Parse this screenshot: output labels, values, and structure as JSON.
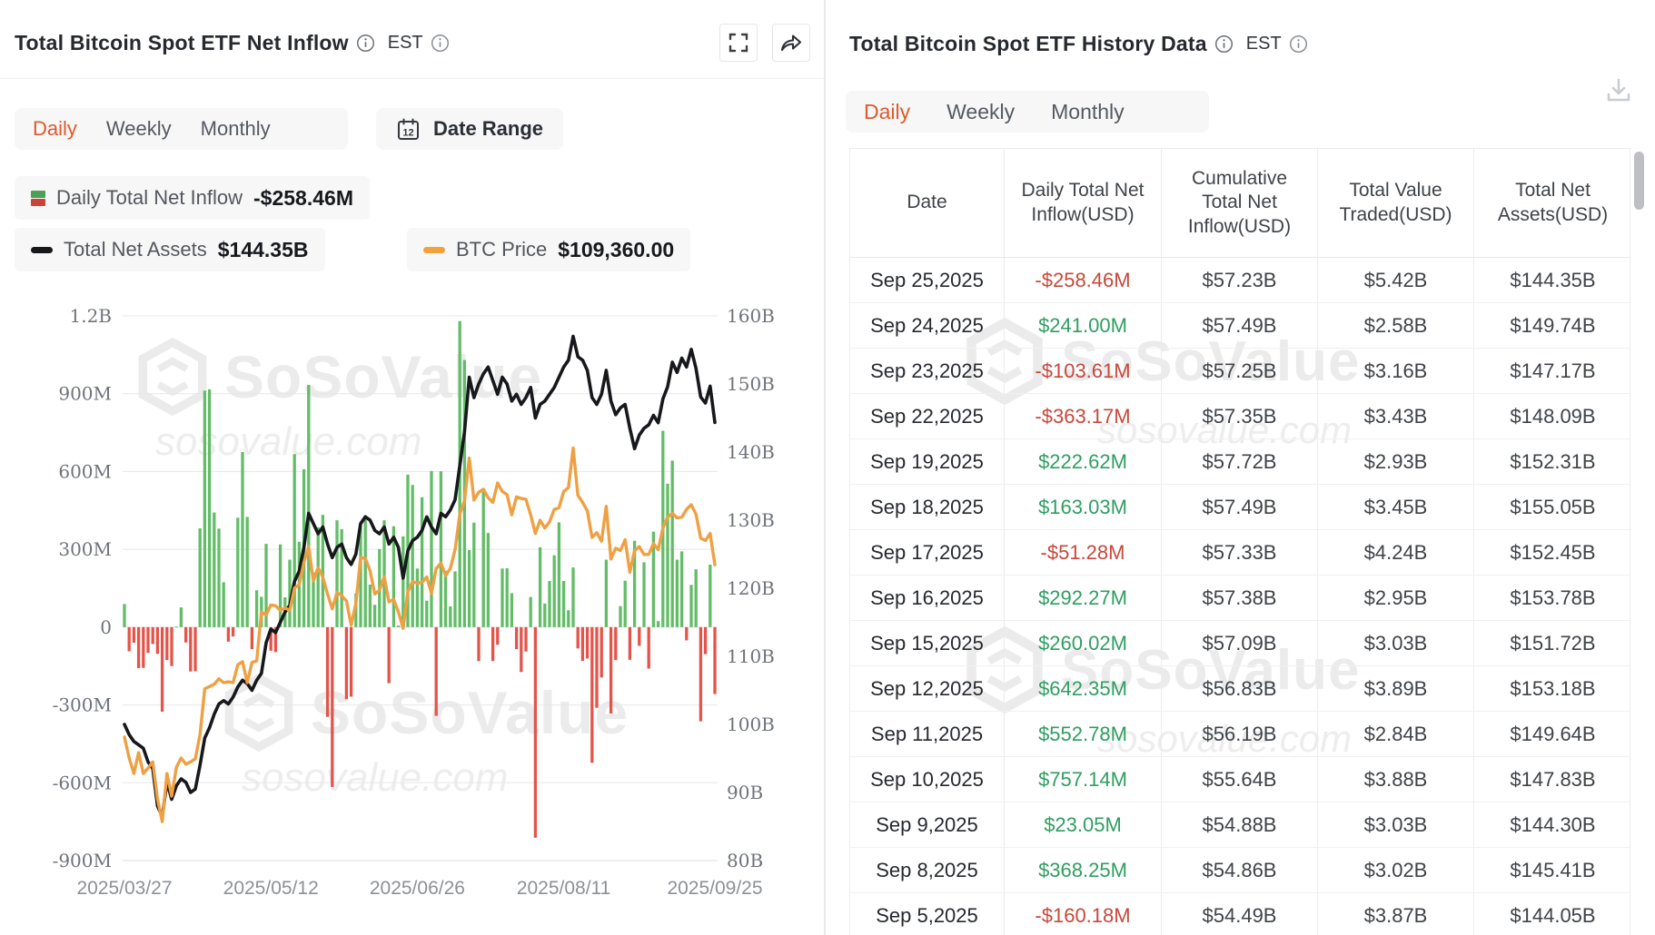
{
  "left_panel": {
    "title": "Total Bitcoin Spot ETF Net Inflow",
    "est_label": "EST",
    "tabs": [
      {
        "label": "Daily",
        "active": true
      },
      {
        "label": "Weekly",
        "active": false
      },
      {
        "label": "Monthly",
        "active": false
      }
    ],
    "date_range_label": "Date Range",
    "calendar_icon_day": "12",
    "legend": {
      "inflow_label": "Daily Total Net Inflow",
      "inflow_value": "-$258.46M",
      "assets_label": "Total Net Assets",
      "assets_value": "$144.35B",
      "btc_label": "BTC Price",
      "btc_value": "$109,360.00"
    }
  },
  "right_panel": {
    "title": "Total Bitcoin Spot ETF History Data",
    "est_label": "EST",
    "tabs": [
      {
        "label": "Daily",
        "active": true
      },
      {
        "label": "Weekly",
        "active": false
      },
      {
        "label": "Monthly",
        "active": false
      }
    ],
    "table": {
      "columns": [
        "Date",
        "Daily Total Net Inflow(USD)",
        "Cumulative Total Net Inflow(USD)",
        "Total Value Traded(USD)",
        "Total Net Assets(USD)"
      ],
      "rows": [
        {
          "date": "Sep 25,2025",
          "inflow": "-$258.46M",
          "cumulative": "$57.23B",
          "traded": "$5.42B",
          "assets": "$144.35B"
        },
        {
          "date": "Sep 24,2025",
          "inflow": "$241.00M",
          "cumulative": "$57.49B",
          "traded": "$2.58B",
          "assets": "$149.74B"
        },
        {
          "date": "Sep 23,2025",
          "inflow": "-$103.61M",
          "cumulative": "$57.25B",
          "traded": "$3.16B",
          "assets": "$147.17B"
        },
        {
          "date": "Sep 22,2025",
          "inflow": "-$363.17M",
          "cumulative": "$57.35B",
          "traded": "$3.43B",
          "assets": "$148.09B"
        },
        {
          "date": "Sep 19,2025",
          "inflow": "$222.62M",
          "cumulative": "$57.72B",
          "traded": "$2.93B",
          "assets": "$152.31B"
        },
        {
          "date": "Sep 18,2025",
          "inflow": "$163.03M",
          "cumulative": "$57.49B",
          "traded": "$3.45B",
          "assets": "$155.05B"
        },
        {
          "date": "Sep 17,2025",
          "inflow": "-$51.28M",
          "cumulative": "$57.33B",
          "traded": "$4.24B",
          "assets": "$152.45B"
        },
        {
          "date": "Sep 16,2025",
          "inflow": "$292.27M",
          "cumulative": "$57.38B",
          "traded": "$2.95B",
          "assets": "$153.78B"
        },
        {
          "date": "Sep 15,2025",
          "inflow": "$260.02M",
          "cumulative": "$57.09B",
          "traded": "$3.03B",
          "assets": "$151.72B"
        },
        {
          "date": "Sep 12,2025",
          "inflow": "$642.35M",
          "cumulative": "$56.83B",
          "traded": "$3.89B",
          "assets": "$153.18B"
        },
        {
          "date": "Sep 11,2025",
          "inflow": "$552.78M",
          "cumulative": "$56.19B",
          "traded": "$2.84B",
          "assets": "$149.64B"
        },
        {
          "date": "Sep 10,2025",
          "inflow": "$757.14M",
          "cumulative": "$55.64B",
          "traded": "$3.88B",
          "assets": "$147.83B"
        },
        {
          "date": "Sep 9,2025",
          "inflow": "$23.05M",
          "cumulative": "$54.88B",
          "traded": "$3.03B",
          "assets": "$144.30B"
        },
        {
          "date": "Sep 8,2025",
          "inflow": "$368.25M",
          "cumulative": "$54.86B",
          "traded": "$3.02B",
          "assets": "$145.41B"
        },
        {
          "date": "Sep 5,2025",
          "inflow": "-$160.18M",
          "cumulative": "$54.49B",
          "traded": "$3.87B",
          "assets": "$144.05B"
        }
      ]
    }
  },
  "watermark": {
    "brand": "SoSoValue",
    "domain": "sosovalue.com"
  },
  "colors": {
    "accent_orange": "#e2592b",
    "bar_positive": "#63bd68",
    "bar_negative": "#e4544a",
    "assets_line": "#17181b",
    "btc_line": "#efa043",
    "gridline": "#e7e7e7",
    "axis_label": "#6f737a",
    "date_label": "#8d9097",
    "table_positive": "#2f9e60",
    "table_negative": "#c9473a"
  },
  "chart_data": {
    "type": "bar+line composite, dual axis",
    "title": "Total Bitcoin Spot ETF Net Inflow (Daily)",
    "x_description": "Daily trading days from 2025/03/27 to 2025/09/25",
    "x_tick_labels": [
      "2025/03/27",
      "2025/05/12",
      "2025/06/26",
      "2025/08/11",
      "2025/09/25"
    ],
    "x_tick_indices": [
      0,
      31,
      62,
      93,
      125
    ],
    "left_axis": {
      "unit": "USD",
      "labels": [
        "1.2B",
        "900M",
        "600M",
        "300M",
        "0",
        "-300M",
        "-600M",
        "-900M"
      ],
      "max_M": 1200,
      "min_M": -900,
      "gridlines": true
    },
    "right_axis": {
      "unit": "USD",
      "labels": [
        "160B",
        "150B",
        "140B",
        "130B",
        "120B",
        "110B",
        "100B",
        "90B",
        "80B"
      ],
      "max_B": 160,
      "min_B": 80,
      "gridlines": false
    },
    "price_axis_hidden": {
      "max_K": 141.4,
      "min_K": 71.3
    },
    "legend_position": "top-left chips",
    "series": [
      {
        "name": "Daily Total Net Inflow",
        "type": "bar",
        "axis": "left",
        "unit": "USD millions (estimated from chart)",
        "values": [
          89,
          -93,
          -60,
          -158,
          -157,
          -99,
          -65,
          -103,
          -326,
          -127,
          -150,
          2,
          76,
          -59,
          -171,
          -170,
          381,
          912,
          917,
          442,
          380,
          173,
          -56,
          -36,
          422,
          675,
          425,
          -85,
          142,
          117,
          321,
          -91,
          -96,
          319,
          115,
          260,
          667,
          329,
          609,
          934,
          211,
          385,
          433,
          -346,
          -616,
          412,
          378,
          -278,
          -268,
          130,
          386,
          431,
          164,
          86,
          301,
          412,
          -216,
          389,
          6,
          350,
          588,
          548,
          226,
          501,
          102,
          602,
          -342,
          601,
          217,
          80,
          215,
          1180,
          1030,
          297,
          403,
          -131,
          522,
          363,
          -131,
          -68,
          226,
          227,
          131,
          -85,
          -173,
          -94,
          116,
          -812,
          308,
          91,
          178,
          277,
          404,
          178,
          65,
          230,
          -82,
          -130,
          -121,
          -523,
          -311,
          -194,
          260,
          -333,
          -127,
          81,
          179,
          -126,
          333,
          -72,
          250,
          -160,
          368,
          23,
          757,
          553,
          642,
          260,
          292,
          -51,
          163,
          223,
          -363,
          -104,
          241,
          -258
        ]
      },
      {
        "name": "Total Net Assets",
        "type": "line",
        "axis": "right",
        "unit": "USD billions (estimated from chart)",
        "values": [
          100,
          98.5,
          97.5,
          97,
          96.5,
          94.5,
          93.5,
          88,
          86.5,
          91.5,
          89,
          91,
          92,
          91.5,
          90,
          90.5,
          94,
          98,
          99.5,
          101.5,
          103,
          103.5,
          103,
          104,
          105.5,
          106.5,
          106,
          105,
          106.5,
          107.5,
          112,
          114,
          113.5,
          115,
          116.5,
          117.5,
          121,
          122.5,
          126,
          131,
          129.5,
          128,
          129,
          126.5,
          124.5,
          126,
          126.5,
          124.5,
          123.5,
          125,
          129.5,
          130.5,
          130,
          128.5,
          128,
          129,
          126.5,
          127.5,
          126,
          121.5,
          125.5,
          127,
          127.5,
          128.5,
          130.5,
          129,
          128,
          131,
          130.5,
          131.5,
          133,
          138,
          143,
          151,
          148,
          150,
          151.5,
          152.5,
          150.5,
          148.5,
          151,
          150,
          147.5,
          148.5,
          147,
          148,
          149.5,
          145,
          147,
          147.5,
          148.5,
          149.5,
          151,
          152.5,
          153.5,
          157,
          154,
          153.5,
          152,
          148,
          147,
          148.5,
          152,
          147.5,
          145.5,
          146.5,
          147,
          143.5,
          140.5,
          142.5,
          143.5,
          144,
          145.4,
          144.3,
          147.8,
          149.6,
          153.2,
          151.7,
          153.8,
          152.5,
          155.1,
          152.3,
          148.1,
          147.2,
          149.7,
          144.35
        ]
      },
      {
        "name": "BTC Price",
        "type": "line",
        "axis": "hidden-price",
        "unit": "USD thousands (estimated from chart)",
        "values": [
          87.2,
          84.5,
          82.5,
          85.2,
          82.5,
          83.2,
          84,
          79.2,
          76.3,
          82.5,
          79.6,
          83.3,
          84.5,
          83.7,
          84,
          84.4,
          87.5,
          93.4,
          93.7,
          94,
          94.7,
          94.2,
          94.3,
          94.2,
          96.5,
          96.9,
          94.2,
          96.8,
          97,
          103.3,
          102.9,
          104.2,
          104.1,
          103.5,
          103.8,
          103.5,
          106.4,
          106.8,
          109.7,
          111.7,
          107.3,
          109,
          107.8,
          105.6,
          103.7,
          105.8,
          105.4,
          104.7,
          101.6,
          104.4,
          110.3,
          110.2,
          108.6,
          105.6,
          106.1,
          107.8,
          104.6,
          104.9,
          103.3,
          101.2,
          105.9,
          107.2,
          107,
          107.1,
          107.8,
          105.7,
          108.9,
          109.6,
          108,
          108.9,
          111.3,
          115.9,
          117.6,
          123.1,
          117.7,
          118.7,
          119.1,
          118,
          117.4,
          119.9,
          118.8,
          118.4,
          115.8,
          118.1,
          117.9,
          117.8,
          115.8,
          113.4,
          115.1,
          114.1,
          114.9,
          116.5,
          116.7,
          118.8,
          119.3,
          124.4,
          118.3,
          117.4,
          116.3,
          112.9,
          113.5,
          112.4,
          116.9,
          110.1,
          111.5,
          111.2,
          112.6,
          108.4,
          111.2,
          111.7,
          110.7,
          110.7,
          112.1,
          111.3,
          114.1,
          115.5,
          116,
          115.4,
          115.5,
          116.5,
          117.1,
          115.9,
          112.8,
          112.5,
          113.4,
          109.36
        ]
      }
    ]
  }
}
